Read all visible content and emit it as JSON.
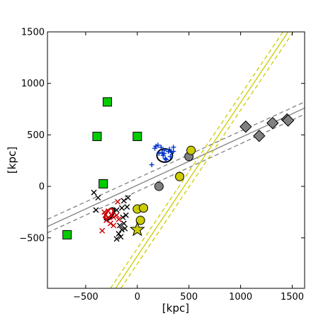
{
  "chart_data": {
    "type": "scatter",
    "xlabel": "[kpc]",
    "ylabel": "[kpc]",
    "xlim": [
      -870,
      1620
    ],
    "ylim": [
      -990,
      1500
    ],
    "xticks": [
      -500,
      0,
      500,
      1000,
      1500
    ],
    "xtick_labels": [
      "−500",
      "0",
      "500",
      "1000",
      "1500"
    ],
    "yticks": [
      -500,
      0,
      500,
      1000,
      1500
    ],
    "ytick_labels": [
      "−500",
      "0",
      "500",
      "1000",
      "1500"
    ],
    "grid": false,
    "colors": {
      "green": "#00cc00",
      "yellow": "#cccc00",
      "gray": "#808080",
      "blue": "#0033cc",
      "red": "#cc0000",
      "black": "#000000"
    },
    "lines": [
      {
        "color": "#808080",
        "style": "solid",
        "points": [
          [
            -870,
            -390
          ],
          [
            1620,
            760
          ]
        ]
      },
      {
        "color": "#808080",
        "style": "dashed",
        "points": [
          [
            -870,
            -320
          ],
          [
            1620,
            820
          ]
        ]
      },
      {
        "color": "#808080",
        "style": "dashed",
        "points": [
          [
            -870,
            -450
          ],
          [
            1620,
            700
          ]
        ]
      },
      {
        "color": "#cccc00",
        "style": "solid",
        "points": [
          [
            -210,
            -990
          ],
          [
            1460,
            1500
          ]
        ]
      },
      {
        "color": "#cccc00",
        "style": "dashed",
        "points": [
          [
            -260,
            -990
          ],
          [
            1410,
            1500
          ]
        ]
      },
      {
        "color": "#cccc00",
        "style": "dashed",
        "points": [
          [
            -160,
            -990
          ],
          [
            1510,
            1500
          ]
        ]
      }
    ],
    "series": [
      {
        "marker": "square",
        "color": "#00cc00",
        "points": [
          [
            -290,
            820
          ],
          [
            -390,
            485
          ],
          [
            0,
            485
          ],
          [
            -330,
            25
          ],
          [
            -680,
            -470
          ]
        ]
      },
      {
        "marker": "diamond",
        "color": "#808080",
        "points": [
          [
            1050,
            580
          ],
          [
            1180,
            490
          ],
          [
            1310,
            615
          ],
          [
            1450,
            650
          ],
          [
            1460,
            640
          ]
        ]
      },
      {
        "marker": "circle",
        "color": "#808080",
        "points": [
          [
            210,
            0
          ],
          [
            500,
            290
          ]
        ]
      },
      {
        "marker": "circle",
        "color": "#cccc00",
        "points": [
          [
            520,
            350
          ],
          [
            410,
            95
          ],
          [
            0,
            -220
          ],
          [
            60,
            -210
          ],
          [
            30,
            -330
          ]
        ]
      },
      {
        "marker": "star",
        "color": "#cccc00",
        "points": [
          [
            0,
            -420
          ]
        ]
      },
      {
        "marker": "plus",
        "color": "#0033cc",
        "points": [
          [
            200,
            400
          ],
          [
            230,
            380
          ],
          [
            260,
            350
          ],
          [
            300,
            340
          ],
          [
            330,
            330
          ],
          [
            350,
            380
          ],
          [
            250,
            300
          ],
          [
            270,
            270
          ],
          [
            210,
            320
          ],
          [
            280,
            260
          ],
          [
            320,
            290
          ],
          [
            180,
            390
          ],
          [
            140,
            210
          ],
          [
            310,
            360
          ],
          [
            240,
            330
          ],
          [
            350,
            340
          ],
          [
            170,
            370
          ],
          [
            260,
            320
          ]
        ]
      },
      {
        "marker": "cross",
        "color": "#cc0000",
        "points": [
          [
            -320,
            -250
          ],
          [
            -280,
            -240
          ],
          [
            -250,
            -280
          ],
          [
            -230,
            -300
          ],
          [
            -190,
            -150
          ],
          [
            -300,
            -330
          ],
          [
            -260,
            -360
          ],
          [
            -340,
            -430
          ],
          [
            -200,
            -280
          ],
          [
            -280,
            -300
          ],
          [
            -230,
            -380
          ],
          [
            -180,
            -320
          ],
          [
            -310,
            -280
          ]
        ]
      },
      {
        "marker": "cross",
        "color": "#000000",
        "points": [
          [
            -420,
            -60
          ],
          [
            -380,
            -110
          ],
          [
            -400,
            -230
          ],
          [
            -200,
            -230
          ],
          [
            -130,
            -140
          ],
          [
            -100,
            -200
          ],
          [
            -110,
            -280
          ],
          [
            -130,
            -360
          ],
          [
            -90,
            -110
          ],
          [
            -180,
            -460
          ],
          [
            -150,
            -420
          ],
          [
            -120,
            -410
          ],
          [
            -160,
            -490
          ],
          [
            -140,
            -300
          ],
          [
            -170,
            -380
          ],
          [
            -150,
            -210
          ],
          [
            -200,
            -510
          ]
        ]
      }
    ],
    "ellipses": [
      {
        "color": "#000000",
        "cx": 265,
        "cy": 300,
        "rx": 75,
        "ry": 65,
        "rotation": 0
      },
      {
        "color": "#000000",
        "cx": -270,
        "cy": -270,
        "rx": 35,
        "ry": 70,
        "rotation": 35
      },
      {
        "color": "#cc0000",
        "cx": -275,
        "cy": -265,
        "rx": 28,
        "ry": 55,
        "rotation": 35
      }
    ]
  }
}
